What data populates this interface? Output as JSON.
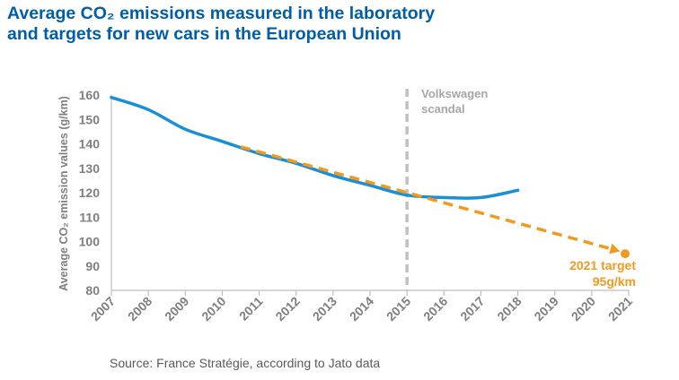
{
  "title": {
    "line1": "Average CO₂ emissions measured in the laboratory",
    "line2": "and targets for new cars in the European Union"
  },
  "source": "Source: France Stratégie, according to Jato data",
  "colors": {
    "title": "#005ea8",
    "actual_line": "#1a8fd6",
    "target_line": "#f29a1e",
    "annotation_grey": "#a6a6a6",
    "axis_text": "#7f7f7f"
  },
  "chart_data": {
    "type": "line",
    "ylabel": "Average CO₂ emission values (g/km)",
    "xlabel": "",
    "ylim": [
      80,
      160
    ],
    "y_ticks": [
      80,
      90,
      100,
      110,
      120,
      130,
      140,
      150,
      160
    ],
    "x_ticks": [
      2007,
      2008,
      2009,
      2010,
      2011,
      2012,
      2013,
      2014,
      2015,
      2016,
      2017,
      2018,
      2019,
      2020,
      2021
    ],
    "grid": false,
    "series": [
      {
        "style": "solid",
        "color": "#1a8fd6",
        "x": [
          2007,
          2008,
          2009,
          2010,
          2011,
          2012,
          2013,
          2014,
          2015,
          2016,
          2017,
          2018
        ],
        "y": [
          159,
          154,
          146,
          141,
          136,
          132,
          127,
          123,
          119,
          118,
          118,
          121
        ]
      },
      {
        "style": "dashed",
        "color": "#f29a1e",
        "x": [
          2010.5,
          2021
        ],
        "y": [
          138.8,
          95
        ]
      }
    ],
    "annotations": [
      {
        "text_lines": [
          "Volkswagen",
          "scandal"
        ],
        "x": 2015,
        "style": "vertical-dashed-line",
        "color": "#c0c0c0"
      },
      {
        "text_lines": [
          "2021 target",
          "95g/km"
        ],
        "x": 2021,
        "y": 95,
        "style": "point",
        "color": "#f29a1e"
      }
    ]
  }
}
